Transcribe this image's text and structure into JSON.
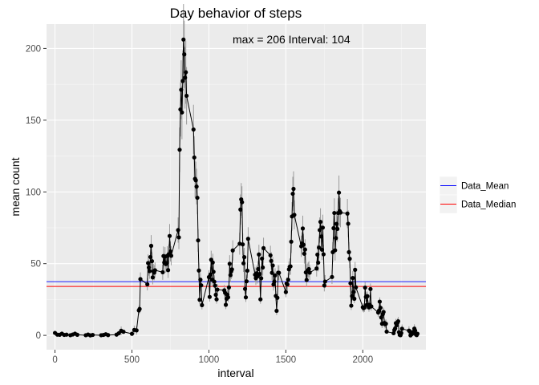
{
  "chart_data": {
    "type": "line",
    "title": "Day behavior of steps",
    "xlabel": "interval",
    "ylabel": "mean count",
    "xlim": [
      -55,
      2410
    ],
    "ylim": [
      -10,
      217
    ],
    "x_ticks": [
      0,
      500,
      1000,
      1500,
      2000
    ],
    "y_ticks": [
      0,
      50,
      100,
      150,
      200
    ],
    "x_tick_labels": [
      "0",
      "500",
      "1000",
      "1500",
      "2000"
    ],
    "y_tick_labels": [
      "0",
      "50",
      "100",
      "150",
      "200"
    ],
    "annotation": "max = 206  Interval:  104",
    "grid": true,
    "legend_position": "right",
    "legend": [
      {
        "name": "Data_Mean",
        "color": "#0000ff",
        "value": 37.4
      },
      {
        "name": "Data_Median",
        "color": "#ff0000",
        "value": 34.1
      }
    ],
    "series": [
      {
        "name": "",
        "color": "#000000",
        "points": [
          [
            0,
            1.7
          ],
          [
            15,
            0.5
          ],
          [
            30,
            0.4
          ],
          [
            45,
            1.2
          ],
          [
            60,
            0.3
          ],
          [
            75,
            0.5
          ],
          [
            100,
            0.1
          ],
          [
            115,
            0.6
          ],
          [
            130,
            1.2
          ],
          [
            145,
            0.4
          ],
          [
            200,
            0.1
          ],
          [
            215,
            0.6
          ],
          [
            230,
            0
          ],
          [
            245,
            0.3
          ],
          [
            300,
            0.1
          ],
          [
            315,
            0.3
          ],
          [
            330,
            0.8
          ],
          [
            345,
            0.2
          ],
          [
            400,
            0.5
          ],
          [
            415,
            1.5
          ],
          [
            430,
            3.2
          ],
          [
            445,
            2.5
          ],
          [
            500,
            1.1
          ],
          [
            515,
            3.8
          ],
          [
            530,
            3.5
          ],
          [
            545,
            17.4
          ],
          [
            550,
            18.4
          ],
          [
            555,
            39.2
          ],
          [
            600,
            35.6
          ],
          [
            605,
            50.4
          ],
          [
            610,
            47.3
          ],
          [
            615,
            44.8
          ],
          [
            620,
            54.6
          ],
          [
            625,
            62.4
          ],
          [
            630,
            51.7
          ],
          [
            635,
            40.4
          ],
          [
            640,
            44.6
          ],
          [
            645,
            43.7
          ],
          [
            650,
            45.4
          ],
          [
            700,
            44
          ],
          [
            705,
            55.3
          ],
          [
            710,
            50.8
          ],
          [
            715,
            54.9
          ],
          [
            720,
            49.7
          ],
          [
            725,
            50.3
          ],
          [
            730,
            55.5
          ],
          [
            735,
            45.5
          ],
          [
            740,
            56.6
          ],
          [
            745,
            69.3
          ],
          [
            750,
            58.5
          ],
          [
            755,
            55.5
          ],
          [
            800,
            73.4
          ],
          [
            805,
            68.3
          ],
          [
            810,
            129.4
          ],
          [
            815,
            157.5
          ],
          [
            820,
            171.2
          ],
          [
            825,
            155.4
          ],
          [
            830,
            177.3
          ],
          [
            835,
            206.2
          ],
          [
            840,
            195.9
          ],
          [
            845,
            179.6
          ],
          [
            850,
            183.4
          ],
          [
            855,
            167
          ],
          [
            900,
            143.5
          ],
          [
            905,
            124
          ],
          [
            910,
            109.1
          ],
          [
            915,
            108.1
          ],
          [
            920,
            103.7
          ],
          [
            925,
            95.9
          ],
          [
            930,
            66.2
          ],
          [
            935,
            45.2
          ],
          [
            940,
            24.8
          ],
          [
            945,
            38.8
          ],
          [
            950,
            34.9
          ],
          [
            955,
            21.1
          ],
          [
            1000,
            40.6
          ],
          [
            1005,
            26.8
          ],
          [
            1010,
            42.4
          ],
          [
            1015,
            52.7
          ],
          [
            1020,
            38.9
          ],
          [
            1025,
            50.8
          ],
          [
            1030,
            44.3
          ],
          [
            1035,
            37.4
          ],
          [
            1040,
            34.7
          ],
          [
            1045,
            28.3
          ],
          [
            1050,
            25.1
          ],
          [
            1055,
            31.9
          ],
          [
            1100,
            31.4
          ],
          [
            1105,
            29.7
          ],
          [
            1110,
            21.3
          ],
          [
            1115,
            25.5
          ],
          [
            1120,
            28.4
          ],
          [
            1125,
            26.5
          ],
          [
            1130,
            33.4
          ],
          [
            1135,
            49.9
          ],
          [
            1140,
            42
          ],
          [
            1145,
            44.6
          ],
          [
            1150,
            46
          ],
          [
            1155,
            59.2
          ],
          [
            1200,
            63.9
          ],
          [
            1205,
            87.7
          ],
          [
            1210,
            94.8
          ],
          [
            1215,
            92.8
          ],
          [
            1220,
            63.4
          ],
          [
            1225,
            50.2
          ],
          [
            1230,
            54.5
          ],
          [
            1235,
            32.4
          ],
          [
            1240,
            26.5
          ],
          [
            1245,
            37.7
          ],
          [
            1250,
            45.1
          ],
          [
            1255,
            67.3
          ],
          [
            1300,
            42.3
          ],
          [
            1305,
            39.9
          ],
          [
            1310,
            43.3
          ],
          [
            1315,
            41
          ],
          [
            1320,
            46.2
          ],
          [
            1325,
            56.4
          ],
          [
            1330,
            42.8
          ],
          [
            1335,
            25.1
          ],
          [
            1340,
            39.8
          ],
          [
            1345,
            53.5
          ],
          [
            1350,
            47.3
          ],
          [
            1355,
            60.8
          ],
          [
            1400,
            55.8
          ],
          [
            1405,
            51.9
          ],
          [
            1410,
            43.6
          ],
          [
            1415,
            48.7
          ],
          [
            1420,
            35.5
          ],
          [
            1425,
            37.5
          ],
          [
            1430,
            41.8
          ],
          [
            1435,
            27.5
          ],
          [
            1440,
            17.1
          ],
          [
            1445,
            26.2
          ],
          [
            1450,
            43.7
          ],
          [
            1455,
            43.6
          ],
          [
            1500,
            30.2
          ],
          [
            1505,
            36.1
          ],
          [
            1510,
            35.5
          ],
          [
            1515,
            38.8
          ],
          [
            1520,
            46
          ],
          [
            1525,
            47.8
          ],
          [
            1530,
            48.1
          ],
          [
            1535,
            65.3
          ],
          [
            1540,
            82.9
          ],
          [
            1545,
            98.7
          ],
          [
            1550,
            102.1
          ],
          [
            1555,
            84
          ],
          [
            1600,
            62.1
          ],
          [
            1605,
            64.1
          ],
          [
            1610,
            74.5
          ],
          [
            1615,
            63.2
          ],
          [
            1620,
            56.9
          ],
          [
            1625,
            59.8
          ],
          [
            1630,
            43.9
          ],
          [
            1635,
            38.6
          ],
          [
            1640,
            44.7
          ],
          [
            1645,
            45.5
          ],
          [
            1650,
            46.2
          ],
          [
            1655,
            43.7
          ],
          [
            1700,
            46.6
          ],
          [
            1705,
            56.3
          ],
          [
            1710,
            50.7
          ],
          [
            1715,
            61.2
          ],
          [
            1720,
            73.4
          ],
          [
            1725,
            79.1
          ],
          [
            1730,
            68.9
          ],
          [
            1735,
            59.7
          ],
          [
            1740,
            75.1
          ],
          [
            1745,
            56.5
          ],
          [
            1750,
            34.8
          ],
          [
            1755,
            37.5
          ],
          [
            1800,
            40.7
          ],
          [
            1805,
            58
          ],
          [
            1810,
            74.7
          ],
          [
            1815,
            85.3
          ],
          [
            1820,
            59.3
          ],
          [
            1825,
            67.8
          ],
          [
            1830,
            77.7
          ],
          [
            1835,
            74.2
          ],
          [
            1840,
            85.3
          ],
          [
            1845,
            99.5
          ],
          [
            1850,
            86.6
          ],
          [
            1855,
            85.6
          ],
          [
            1900,
            84.9
          ],
          [
            1905,
            77.8
          ],
          [
            1910,
            58
          ],
          [
            1915,
            53.4
          ],
          [
            1920,
            36.3
          ],
          [
            1925,
            20.7
          ],
          [
            1930,
            27.4
          ],
          [
            1935,
            40
          ],
          [
            1940,
            30.2
          ],
          [
            1945,
            25.5
          ],
          [
            1950,
            45.7
          ],
          [
            1955,
            33.5
          ],
          [
            2000,
            19.6
          ],
          [
            2005,
            19
          ],
          [
            2010,
            19.3
          ],
          [
            2015,
            33.3
          ],
          [
            2020,
            26.8
          ],
          [
            2025,
            21.2
          ],
          [
            2030,
            27.3
          ],
          [
            2035,
            21.3
          ],
          [
            2040,
            19.5
          ],
          [
            2045,
            21.3
          ],
          [
            2050,
            32.3
          ],
          [
            2055,
            20.2
          ],
          [
            2100,
            15.9
          ],
          [
            2105,
            17.2
          ],
          [
            2110,
            23.5
          ],
          [
            2115,
            19.2
          ],
          [
            2120,
            12.5
          ],
          [
            2125,
            8.1
          ],
          [
            2130,
            14.7
          ],
          [
            2135,
            16.3
          ],
          [
            2140,
            8.7
          ],
          [
            2145,
            7.8
          ],
          [
            2150,
            8.1
          ],
          [
            2155,
            2.6
          ],
          [
            2200,
            1.5
          ],
          [
            2205,
            3.7
          ],
          [
            2210,
            4.8
          ],
          [
            2215,
            8.5
          ],
          [
            2220,
            7.1
          ],
          [
            2225,
            8.7
          ],
          [
            2230,
            9.8
          ],
          [
            2235,
            2.2
          ],
          [
            2240,
            0.3
          ],
          [
            2245,
            0.1
          ],
          [
            2250,
            1.6
          ],
          [
            2255,
            4.6
          ],
          [
            2300,
            3.3
          ],
          [
            2305,
            2.8
          ],
          [
            2310,
            0
          ],
          [
            2315,
            0.8
          ],
          [
            2320,
            1
          ],
          [
            2325,
            1.6
          ],
          [
            2330,
            2.6
          ],
          [
            2335,
            4.7
          ],
          [
            2340,
            3.3
          ],
          [
            2345,
            0.6
          ],
          [
            2350,
            0.2
          ],
          [
            2355,
            1.1
          ]
        ]
      }
    ]
  }
}
